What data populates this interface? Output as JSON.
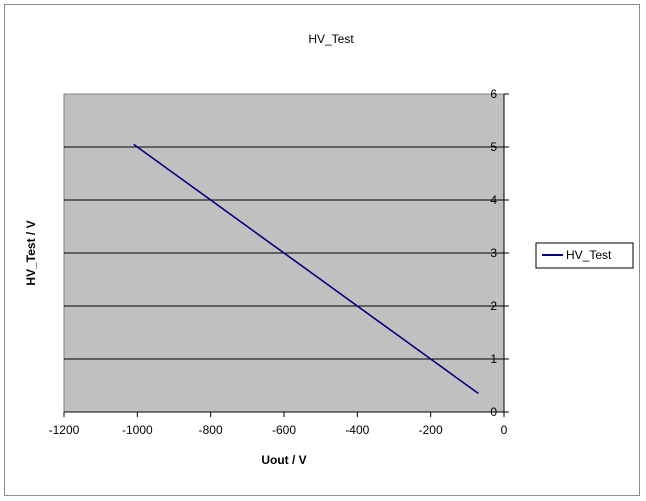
{
  "chart_data": {
    "type": "line",
    "title": "HV_Test",
    "xlabel": "Uout / V",
    "ylabel": "HV_Test / V",
    "xlim": [
      -1200,
      0
    ],
    "ylim": [
      0,
      6
    ],
    "x_ticks": [
      "-1200",
      "-1000",
      "-800",
      "-600",
      "-400",
      "-200",
      "0"
    ],
    "y_ticks": [
      "0",
      "1",
      "2",
      "3",
      "4",
      "5",
      "6"
    ],
    "y_axis_side": "right",
    "grid": true,
    "legend_position": "right",
    "plot_background": "#c0c0c0",
    "series": [
      {
        "name": "HV_Test",
        "color": "#000080",
        "x": [
          -1010,
          -900,
          -800,
          -700,
          -600,
          -500,
          -400,
          -300,
          -200,
          -100,
          -70
        ],
        "y": [
          5.05,
          4.5,
          4.0,
          3.5,
          3.0,
          2.5,
          2.0,
          1.5,
          1.0,
          0.5,
          0.35
        ]
      }
    ]
  }
}
